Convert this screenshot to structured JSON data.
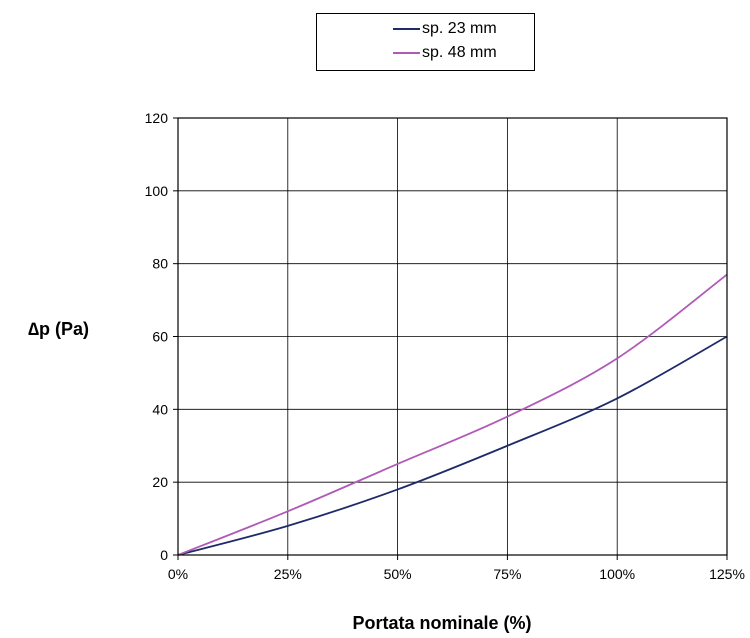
{
  "chart_data": {
    "type": "line",
    "xlabel": "Portata  nominale (%)",
    "ylabel": "∆p (Pa)",
    "x": [
      0,
      25,
      50,
      75,
      100,
      125
    ],
    "x_tick_labels": [
      "0%",
      "25%",
      "50%",
      "75%",
      "100%",
      "125%"
    ],
    "xlim": [
      0,
      125
    ],
    "ylim": [
      0,
      120
    ],
    "y_ticks": [
      0,
      20,
      40,
      60,
      80,
      100,
      120
    ],
    "grid": true,
    "legend_position": "top-center",
    "series": [
      {
        "name": "sp. 23 mm",
        "color": "#1f2a6b",
        "values": [
          0,
          8,
          18,
          30,
          43,
          60
        ]
      },
      {
        "name": "sp. 48 mm",
        "color": "#b05ab8",
        "values": [
          0,
          12,
          25,
          38,
          54,
          77
        ]
      }
    ]
  }
}
